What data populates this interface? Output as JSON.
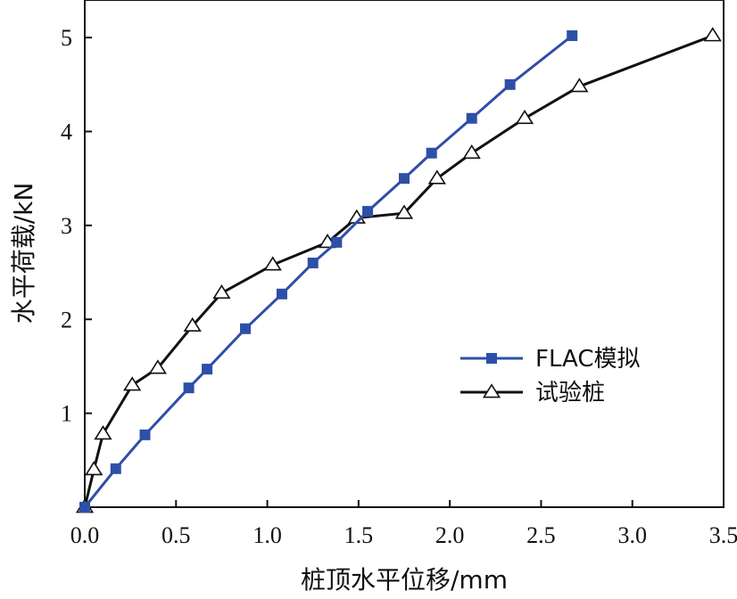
{
  "chart_data": {
    "type": "line",
    "xlabel": "桩顶水平位移/mm",
    "ylabel": "水平荷载/kN",
    "xlim": [
      0,
      3.5
    ],
    "ylim": [
      0,
      5.4
    ],
    "x_ticks": [
      0.0,
      0.5,
      1.0,
      1.5,
      2.0,
      2.5,
      3.0,
      3.5
    ],
    "x_tick_labels": [
      "0.0",
      "0.5",
      "1.0",
      "1.5",
      "2.0",
      "2.5",
      "3.0",
      "3.5"
    ],
    "y_ticks": [
      1,
      2,
      3,
      4,
      5
    ],
    "y_tick_labels": [
      "1",
      "2",
      "3",
      "4",
      "5"
    ],
    "grid": false,
    "legend_position": "lower-right",
    "series": [
      {
        "name": "FLAC模拟",
        "color": "#2e4fa8",
        "marker": "filled-square",
        "points": [
          {
            "x": 0.0,
            "y": 0.0
          },
          {
            "x": 0.17,
            "y": 0.41
          },
          {
            "x": 0.33,
            "y": 0.77
          },
          {
            "x": 0.57,
            "y": 1.27
          },
          {
            "x": 0.67,
            "y": 1.47
          },
          {
            "x": 0.88,
            "y": 1.9
          },
          {
            "x": 1.08,
            "y": 2.27
          },
          {
            "x": 1.25,
            "y": 2.6
          },
          {
            "x": 1.38,
            "y": 2.82
          },
          {
            "x": 1.55,
            "y": 3.15
          },
          {
            "x": 1.75,
            "y": 3.5
          },
          {
            "x": 1.9,
            "y": 3.77
          },
          {
            "x": 2.12,
            "y": 4.14
          },
          {
            "x": 2.33,
            "y": 4.5
          },
          {
            "x": 2.67,
            "y": 5.02
          }
        ]
      },
      {
        "name": "试验桩",
        "color": "#111111",
        "marker": "open-triangle",
        "points": [
          {
            "x": 0.0,
            "y": 0.0
          },
          {
            "x": 0.05,
            "y": 0.4
          },
          {
            "x": 0.1,
            "y": 0.78
          },
          {
            "x": 0.26,
            "y": 1.3
          },
          {
            "x": 0.4,
            "y": 1.48
          },
          {
            "x": 0.59,
            "y": 1.93
          },
          {
            "x": 0.75,
            "y": 2.28
          },
          {
            "x": 1.03,
            "y": 2.58
          },
          {
            "x": 1.33,
            "y": 2.82
          },
          {
            "x": 1.49,
            "y": 3.08
          },
          {
            "x": 1.75,
            "y": 3.13
          },
          {
            "x": 1.93,
            "y": 3.5
          },
          {
            "x": 2.12,
            "y": 3.77
          },
          {
            "x": 2.41,
            "y": 4.14
          },
          {
            "x": 2.71,
            "y": 4.48
          },
          {
            "x": 3.44,
            "y": 5.02
          }
        ]
      }
    ]
  }
}
